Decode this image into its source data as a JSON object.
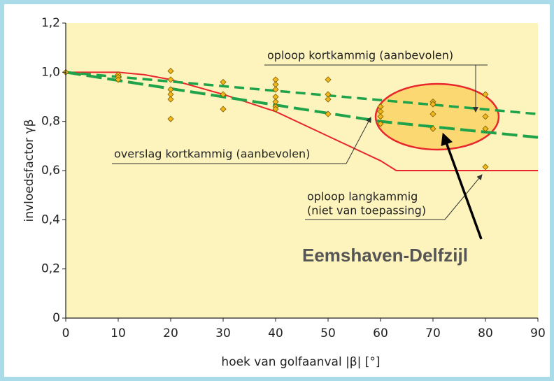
{
  "chart_data": {
    "type": "scatter",
    "xlabel": "hoek van golfaanval  |β|  [°]",
    "ylabel": "invloedsfactor γβ",
    "xlim": [
      0,
      90
    ],
    "xticks": [
      0,
      10,
      20,
      30,
      40,
      50,
      60,
      70,
      80,
      90
    ],
    "ylim": [
      0,
      1.2
    ],
    "yticks": [
      0,
      {
        "value": 0.2,
        "label": "0,2"
      },
      {
        "value": 0.4,
        "label": "0,4"
      },
      {
        "value": 0.6,
        "label": "0,6"
      },
      {
        "value": 0.8,
        "label": "0,8"
      },
      {
        "value": 1.0,
        "label": "1,0"
      },
      {
        "value": 1.2,
        "label": "1,2"
      }
    ],
    "series": [
      {
        "type": "line",
        "style": "solid",
        "color": "#e8262b",
        "x": [
          0,
          10,
          15,
          20,
          30,
          40,
          50,
          60,
          63,
          90
        ],
        "values": [
          1.0,
          1.0,
          0.99,
          0.97,
          0.91,
          0.84,
          0.74,
          0.64,
          0.6,
          0.6
        ]
      },
      {
        "type": "line",
        "style": "dashed-thick",
        "color": "#1fa34a",
        "x": [
          0,
          60,
          90
        ],
        "values": [
          1.0,
          0.8,
          0.735
        ]
      },
      {
        "type": "line",
        "style": "dashed",
        "color": "#1fa34a",
        "x": [
          0,
          90
        ],
        "values": [
          1.0,
          0.83
        ]
      },
      {
        "type": "scatter",
        "color": "#f2b81a",
        "x": [
          0,
          10,
          10,
          10,
          20,
          20,
          20,
          20,
          20,
          20,
          30,
          30,
          30,
          40,
          40,
          40,
          40,
          40,
          40,
          40,
          50,
          50,
          50,
          50,
          60,
          60,
          60,
          60,
          70,
          70,
          70,
          70,
          80,
          80,
          80,
          80
        ],
        "values": [
          1.0,
          0.99,
          0.98,
          0.97,
          1.005,
          0.97,
          0.93,
          0.91,
          0.89,
          0.81,
          0.96,
          0.91,
          0.85,
          0.97,
          0.95,
          0.93,
          0.9,
          0.88,
          0.86,
          0.85,
          0.97,
          0.91,
          0.89,
          0.83,
          0.86,
          0.84,
          0.82,
          0.79,
          0.88,
          0.87,
          0.83,
          0.77,
          0.91,
          0.82,
          0.77,
          0.615
        ]
      }
    ],
    "annotations": [
      "oploop kortkammig (aanbevolen)",
      "overslag kortkammig (aanbevolen)",
      "oploop langkammig",
      "(niet van toepassing)",
      "Eemshaven-Delfzijl"
    ]
  }
}
